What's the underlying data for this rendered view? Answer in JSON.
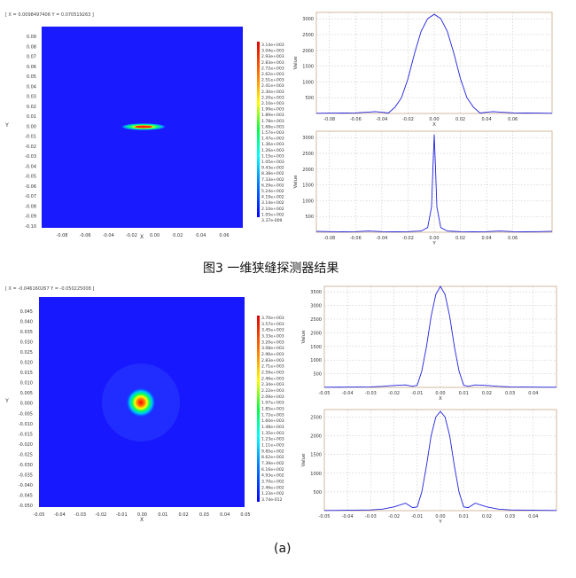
{
  "figure1": {
    "readout": "[ X = 0.0098497406  Y = 0.070519263 ]",
    "caption": "图3  一维狭缝探测器结果",
    "heatmap": {
      "xlabel": "X",
      "ylabel": "Y",
      "xticks": [
        "-0.08",
        "-0.06",
        "-0.04",
        "-0.02",
        "0.00",
        "0.02",
        "0.04",
        "0.06"
      ],
      "yticks": [
        "0.09",
        "0.08",
        "0.07",
        "0.06",
        "0.05",
        "0.04",
        "0.03",
        "0.02",
        "0.01",
        "0.00",
        "-0.01",
        "-0.02",
        "-0.03",
        "-0.04",
        "-0.05",
        "-0.06",
        "-0.07",
        "-0.08",
        "-0.09",
        "-0.10"
      ],
      "colorbar_labels": [
        "3.14e+003",
        "3.04e+003",
        "2.93e+003",
        "2.83e+003",
        "2.72e+003",
        "2.62e+003",
        "2.51e+003",
        "2.41e+003",
        "2.30e+003",
        "2.20e+003",
        "2.10e+003",
        "1.99e+003",
        "1.89e+003",
        "1.78e+003",
        "1.68e+003",
        "1.57e+003",
        "1.47e+003",
        "1.36e+003",
        "1.26e+003",
        "1.15e+003",
        "1.05e+003",
        "9.43e+002",
        "8.38e+002",
        "7.33e+002",
        "6.29e+002",
        "5.24e+002",
        "4.19e+002",
        "3.14e+002",
        "2.10e+002",
        "1.05e+002",
        "3.37e-009"
      ]
    },
    "plot_x": {
      "xlabel": "X",
      "ylabel": "Value",
      "xticks": [
        "-0.08",
        "-0.06",
        "-0.04",
        "-0.02",
        "0.00",
        "0.02",
        "0.04",
        "0.06"
      ],
      "yticks": [
        "3000",
        "2500",
        "2000",
        "1500",
        "1000",
        "500"
      ]
    },
    "plot_y": {
      "xlabel": "Y",
      "ylabel": "Value",
      "xticks": [
        "-0.08",
        "-0.06",
        "-0.04",
        "-0.02",
        "0.00",
        "0.02",
        "0.04",
        "0.06"
      ],
      "yticks": [
        "3000",
        "2500",
        "2000",
        "1500",
        "1000",
        "500"
      ]
    }
  },
  "figure2": {
    "readout": "[ X = -0.046160267  Y = -0.050225008 ]",
    "caption": "(a)",
    "heatmap": {
      "xlabel": "X",
      "ylabel": "Y",
      "xticks": [
        "-0.05",
        "-0.04",
        "-0.03",
        "-0.02",
        "-0.01",
        "0.00",
        "0.01",
        "0.02",
        "0.03",
        "0.04",
        "0.05"
      ],
      "yticks": [
        "0.045",
        "0.040",
        "0.035",
        "0.030",
        "0.025",
        "0.020",
        "0.015",
        "0.010",
        "0.005",
        "0.000",
        "-0.005",
        "-0.010",
        "-0.015",
        "-0.020",
        "-0.025",
        "-0.030",
        "-0.035",
        "-0.040",
        "-0.045",
        "-0.050"
      ],
      "colorbar_labels": [
        "3.70e+003",
        "3.57e+003",
        "3.45e+003",
        "3.33e+003",
        "3.20e+003",
        "3.08e+003",
        "2.96e+003",
        "2.83e+003",
        "2.71e+003",
        "2.59e+003",
        "2.46e+003",
        "2.34e+003",
        "2.22e+003",
        "2.09e+003",
        "1.97e+003",
        "1.85e+003",
        "1.72e+003",
        "1.60e+003",
        "1.48e+003",
        "1.35e+003",
        "1.23e+003",
        "1.11e+003",
        "9.85e+002",
        "8.62e+002",
        "7.39e+002",
        "6.16e+002",
        "4.93e+002",
        "3.70e+002",
        "2.46e+002",
        "1.23e+002",
        "3.74e-012"
      ]
    },
    "plot_x": {
      "xlabel": "X",
      "ylabel": "Value",
      "xticks": [
        "-0.05",
        "-0.04",
        "-0.03",
        "-0.02",
        "-0.01",
        "0.00",
        "0.01",
        "0.02",
        "0.03",
        "0.04"
      ],
      "yticks": [
        "3500",
        "3000",
        "2500",
        "2000",
        "1500",
        "1000",
        "500"
      ]
    },
    "plot_y": {
      "xlabel": "Y",
      "ylabel": "Value",
      "xticks": [
        "-0.05",
        "-0.04",
        "-0.03",
        "-0.02",
        "-0.01",
        "0.00",
        "0.01",
        "0.02",
        "0.03",
        "0.04"
      ],
      "yticks": [
        "2500",
        "2000",
        "1500",
        "1000",
        "500"
      ]
    }
  },
  "chart_data": [
    {
      "type": "heatmap",
      "xlabel": "X",
      "ylabel": "Y",
      "xlim": [
        -0.09,
        0.07
      ],
      "ylim": [
        -0.1,
        0.1
      ],
      "colorbar": {
        "min": 3.37e-09,
        "max": 3140
      },
      "peak": {
        "x": 0.0,
        "y": 0.0,
        "width_x": 0.02,
        "width_y": 0.002,
        "value": 3140
      }
    },
    {
      "type": "line",
      "xlabel": "X",
      "ylabel": "Value",
      "xlim": [
        -0.09,
        0.09
      ],
      "ylim": [
        0,
        3200
      ],
      "grid": true,
      "series": [
        {
          "x": [
            -0.09,
            -0.08,
            -0.07,
            -0.06,
            -0.05,
            -0.045,
            -0.04,
            -0.035,
            -0.03,
            -0.025,
            -0.02,
            -0.015,
            -0.01,
            -0.005,
            0.0,
            0.005,
            0.01,
            0.015,
            0.02,
            0.025,
            0.03,
            0.035,
            0.04,
            0.045,
            0.05,
            0.06,
            0.07,
            0.08,
            0.09
          ],
          "y": [
            5,
            10,
            15,
            20,
            45,
            60,
            40,
            15,
            200,
            500,
            1100,
            1900,
            2600,
            3000,
            3140,
            3000,
            2600,
            1900,
            1100,
            500,
            200,
            15,
            40,
            60,
            45,
            20,
            15,
            10,
            5
          ]
        }
      ]
    },
    {
      "type": "line",
      "xlabel": "Y",
      "ylabel": "Value",
      "xlim": [
        -0.09,
        0.09
      ],
      "ylim": [
        0,
        3200
      ],
      "grid": true,
      "series": [
        {
          "x": [
            -0.09,
            -0.08,
            -0.07,
            -0.06,
            -0.05,
            -0.04,
            -0.03,
            -0.02,
            -0.01,
            -0.005,
            -0.002,
            -0.001,
            0.0,
            0.001,
            0.002,
            0.005,
            0.01,
            0.02,
            0.03,
            0.04,
            0.05,
            0.06,
            0.07,
            0.08,
            0.09
          ],
          "y": [
            30,
            20,
            15,
            20,
            40,
            20,
            15,
            20,
            40,
            150,
            800,
            2000,
            3100,
            2000,
            800,
            150,
            40,
            20,
            15,
            20,
            40,
            20,
            15,
            20,
            30
          ]
        }
      ]
    },
    {
      "type": "heatmap",
      "xlabel": "X",
      "ylabel": "Y",
      "xlim": [
        -0.05,
        0.05
      ],
      "ylim": [
        -0.05,
        0.05
      ],
      "colorbar": {
        "min": 3.74e-12,
        "max": 3700
      },
      "peak": {
        "x": 0.0,
        "y": 0.0,
        "width_x": 0.008,
        "width_y": 0.008,
        "value": 3700
      }
    },
    {
      "type": "line",
      "xlabel": "X",
      "ylabel": "Value",
      "xlim": [
        -0.05,
        0.05
      ],
      "ylim": [
        0,
        3700
      ],
      "grid": true,
      "series": [
        {
          "x": [
            -0.05,
            -0.04,
            -0.03,
            -0.025,
            -0.02,
            -0.015,
            -0.012,
            -0.01,
            -0.008,
            -0.006,
            -0.004,
            -0.002,
            0.0,
            0.002,
            0.004,
            0.006,
            0.008,
            0.01,
            0.012,
            0.015,
            0.02,
            0.025,
            0.03,
            0.04,
            0.05
          ],
          "y": [
            5,
            10,
            20,
            40,
            70,
            90,
            40,
            80,
            600,
            1500,
            2600,
            3400,
            3700,
            3400,
            2600,
            1500,
            600,
            80,
            40,
            90,
            70,
            40,
            20,
            10,
            5
          ]
        }
      ]
    },
    {
      "type": "line",
      "xlabel": "Y",
      "ylabel": "Value",
      "xlim": [
        -0.05,
        0.05
      ],
      "ylim": [
        0,
        2700
      ],
      "grid": true,
      "series": [
        {
          "x": [
            -0.05,
            -0.04,
            -0.03,
            -0.025,
            -0.02,
            -0.015,
            -0.012,
            -0.01,
            -0.008,
            -0.006,
            -0.004,
            -0.002,
            0.0,
            0.002,
            0.004,
            0.006,
            0.008,
            0.01,
            0.012,
            0.015,
            0.02,
            0.025,
            0.03,
            0.04,
            0.05
          ],
          "y": [
            5,
            10,
            20,
            40,
            100,
            200,
            80,
            100,
            500,
            1200,
            2000,
            2500,
            2650,
            2500,
            2000,
            1200,
            500,
            100,
            80,
            200,
            100,
            40,
            20,
            10,
            5
          ]
        }
      ]
    }
  ]
}
